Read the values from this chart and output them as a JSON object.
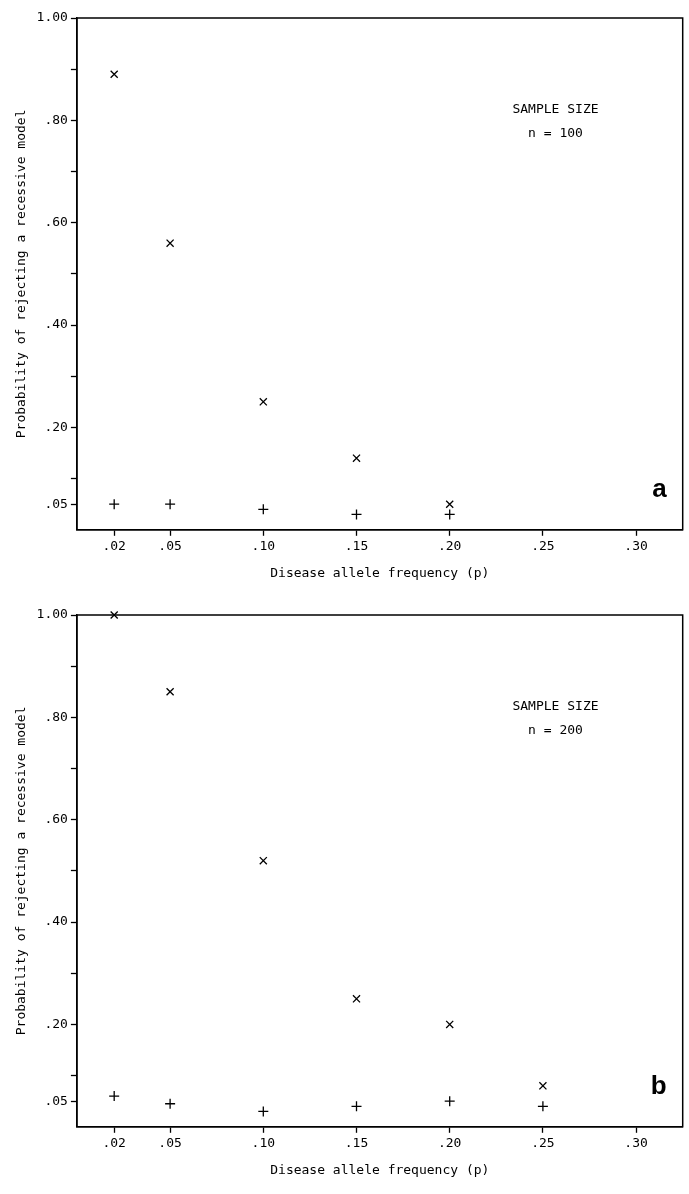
{
  "chart_data": [
    {
      "type": "scatter",
      "xlabel": "Disease allele frequency (p)",
      "ylabel": "Probability of rejecting a recessive model",
      "annotations": [
        "SAMPLE SIZE",
        "n = 100",
        "a"
      ],
      "series": [
        {
          "color": "#000000",
          "marker": "x",
          "x": [
            0.02,
            0.05,
            0.1,
            0.15,
            0.2
          ],
          "values": [
            0.89,
            0.56,
            0.25,
            0.14,
            0.05
          ]
        },
        {
          "color": "#000000",
          "marker": "cross",
          "x": [
            0.02,
            0.05,
            0.1,
            0.15,
            0.2
          ],
          "values": [
            0.05,
            0.05,
            0.04,
            0.03,
            0.03
          ]
        }
      ],
      "xlim": [
        0,
        0.325
      ],
      "xticks": [
        {
          "value": 0.02,
          "label": ".02"
        },
        {
          "value": 0.05,
          "label": ".05"
        },
        {
          "value": 0.1,
          "label": ".10"
        },
        {
          "value": 0.15,
          "label": ".15"
        },
        {
          "value": 0.2,
          "label": ".20"
        },
        {
          "value": 0.25,
          "label": ".25"
        },
        {
          "value": 0.3,
          "label": ".30"
        }
      ],
      "ylim": [
        0,
        1
      ],
      "yticks": [
        {
          "value": 0.05,
          "label": ".05"
        },
        {
          "value": 0.1,
          "label": null
        },
        {
          "value": 0.2,
          "label": ".20"
        },
        {
          "value": 0.3,
          "label": null
        },
        {
          "value": 0.4,
          "label": ".40"
        },
        {
          "value": 0.5,
          "label": null
        },
        {
          "value": 0.6,
          "label": ".60"
        },
        {
          "value": 0.7,
          "label": null
        },
        {
          "value": 0.8,
          "label": ".80"
        },
        {
          "value": 0.9,
          "label": null
        },
        {
          "value": 1,
          "label": "1.00"
        }
      ],
      "grid": false,
      "legend": false
    },
    {
      "type": "scatter",
      "xlabel": "Disease allele frequency (p)",
      "ylabel": "Probability of rejecting a recessive model",
      "annotations": [
        "SAMPLE SIZE",
        "n = 200",
        "b"
      ],
      "series": [
        {
          "color": "#000000",
          "marker": "x",
          "x": [
            0.02,
            0.05,
            0.1,
            0.15,
            0.2,
            0.25
          ],
          "values": [
            1.0,
            0.85,
            0.52,
            0.25,
            0.2,
            0.08
          ]
        },
        {
          "color": "#000000",
          "marker": "cross",
          "x": [
            0.02,
            0.05,
            0.1,
            0.15,
            0.2,
            0.25
          ],
          "values": [
            0.06,
            0.045,
            0.03,
            0.04,
            0.05,
            0.04
          ]
        }
      ],
      "xlim": [
        0,
        0.325
      ],
      "xticks": [
        {
          "value": 0.02,
          "label": ".02"
        },
        {
          "value": 0.05,
          "label": ".05"
        },
        {
          "value": 0.1,
          "label": ".10"
        },
        {
          "value": 0.15,
          "label": ".15"
        },
        {
          "value": 0.2,
          "label": ".20"
        },
        {
          "value": 0.25,
          "label": ".25"
        },
        {
          "value": 0.3,
          "label": ".30"
        }
      ],
      "ylim": [
        0,
        1
      ],
      "yticks": [
        {
          "value": 0.05,
          "label": ".05"
        },
        {
          "value": 0.1,
          "label": null
        },
        {
          "value": 0.2,
          "label": ".20"
        },
        {
          "value": 0.3,
          "label": null
        },
        {
          "value": 0.4,
          "label": ".40"
        },
        {
          "value": 0.5,
          "label": null
        },
        {
          "value": 0.6,
          "label": ".60"
        },
        {
          "value": 0.7,
          "label": null
        },
        {
          "value": 0.8,
          "label": ".80"
        },
        {
          "value": 0.9,
          "label": null
        },
        {
          "value": 1,
          "label": "1.00"
        }
      ],
      "grid": false,
      "legend": false
    }
  ]
}
